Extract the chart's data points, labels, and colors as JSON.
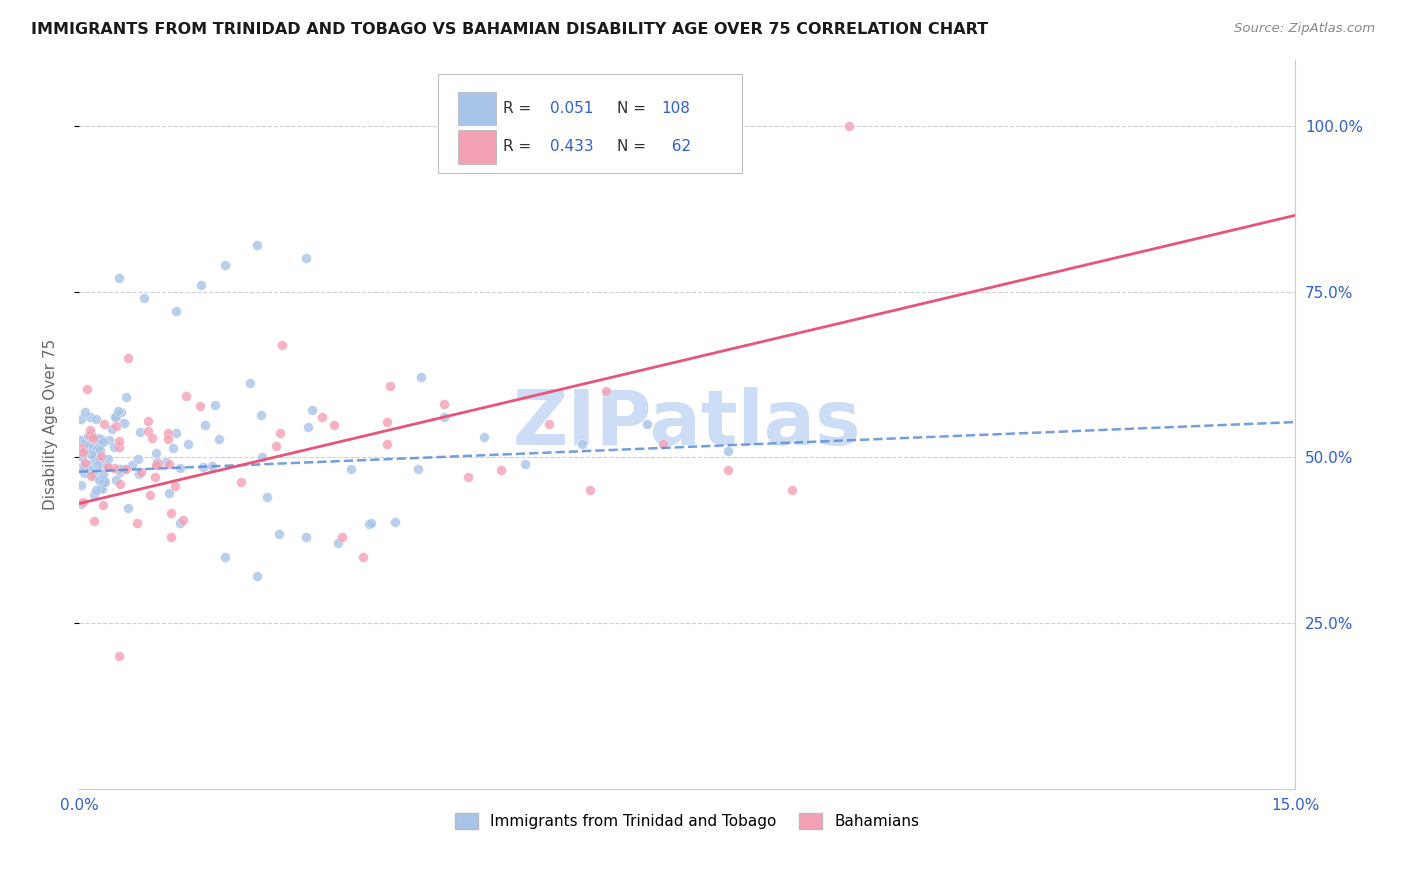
{
  "title": "IMMIGRANTS FROM TRINIDAD AND TOBAGO VS BAHAMIAN DISABILITY AGE OVER 75 CORRELATION CHART",
  "source": "Source: ZipAtlas.com",
  "ylabel": "Disability Age Over 75",
  "xmin": 0.0,
  "xmax": 0.15,
  "ymin": 0.0,
  "ymax": 1.1,
  "color_blue": "#a8c4e8",
  "color_pink": "#f4a0b5",
  "color_line_blue": "#5b8dd9",
  "color_line_pink": "#e8557a",
  "color_text_blue": "#3060cc",
  "watermark_color": "#ccddf5",
  "blue_line_intercept": 0.475,
  "blue_line_slope": 0.55,
  "pink_line_intercept": 0.42,
  "pink_line_slope": 5.0,
  "legend_R1": "0.051",
  "legend_N1": "108",
  "legend_R2": "0.433",
  "legend_N2": "62"
}
